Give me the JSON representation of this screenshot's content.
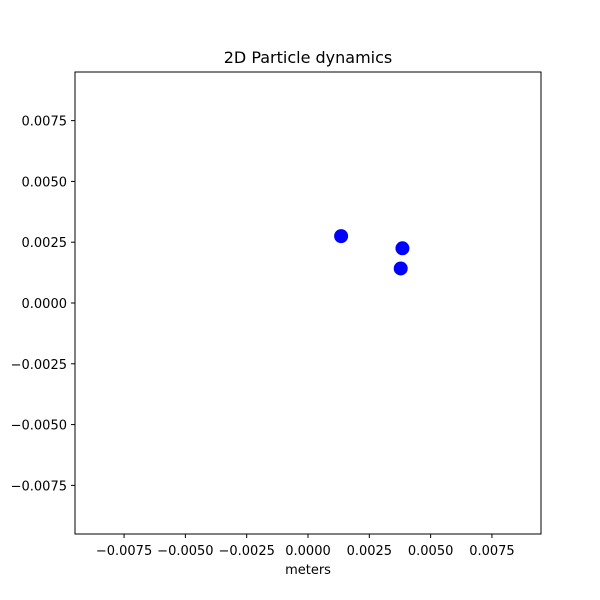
{
  "chart_data": {
    "type": "scatter",
    "title": "2D Particle dynamics",
    "xlabel": "meters",
    "ylabel": "",
    "xlim": [
      -0.0095,
      0.0095
    ],
    "ylim": [
      -0.0095,
      0.0095
    ],
    "xticks": [
      -0.0075,
      -0.005,
      -0.0025,
      0.0,
      0.0025,
      0.005,
      0.0075
    ],
    "xtick_labels": [
      "−0.0075",
      "−0.0050",
      "−0.0025",
      "0.0000",
      "0.0025",
      "0.0050",
      "0.0075"
    ],
    "yticks": [
      0.0075,
      0.005,
      0.0025,
      0.0,
      -0.0025,
      -0.005,
      -0.0075
    ],
    "ytick_labels": [
      "0.0075",
      "0.0050",
      "0.0025",
      "0.0000",
      "−0.0025",
      "−0.0050",
      "−0.0075"
    ],
    "grid": false,
    "legend": false,
    "series": [
      {
        "color": "#0000ff",
        "points": [
          {
            "x": 0.00135,
            "y": 0.00275
          },
          {
            "x": 0.00385,
            "y": 0.00225
          },
          {
            "x": 0.00378,
            "y": 0.00142
          }
        ]
      }
    ]
  }
}
